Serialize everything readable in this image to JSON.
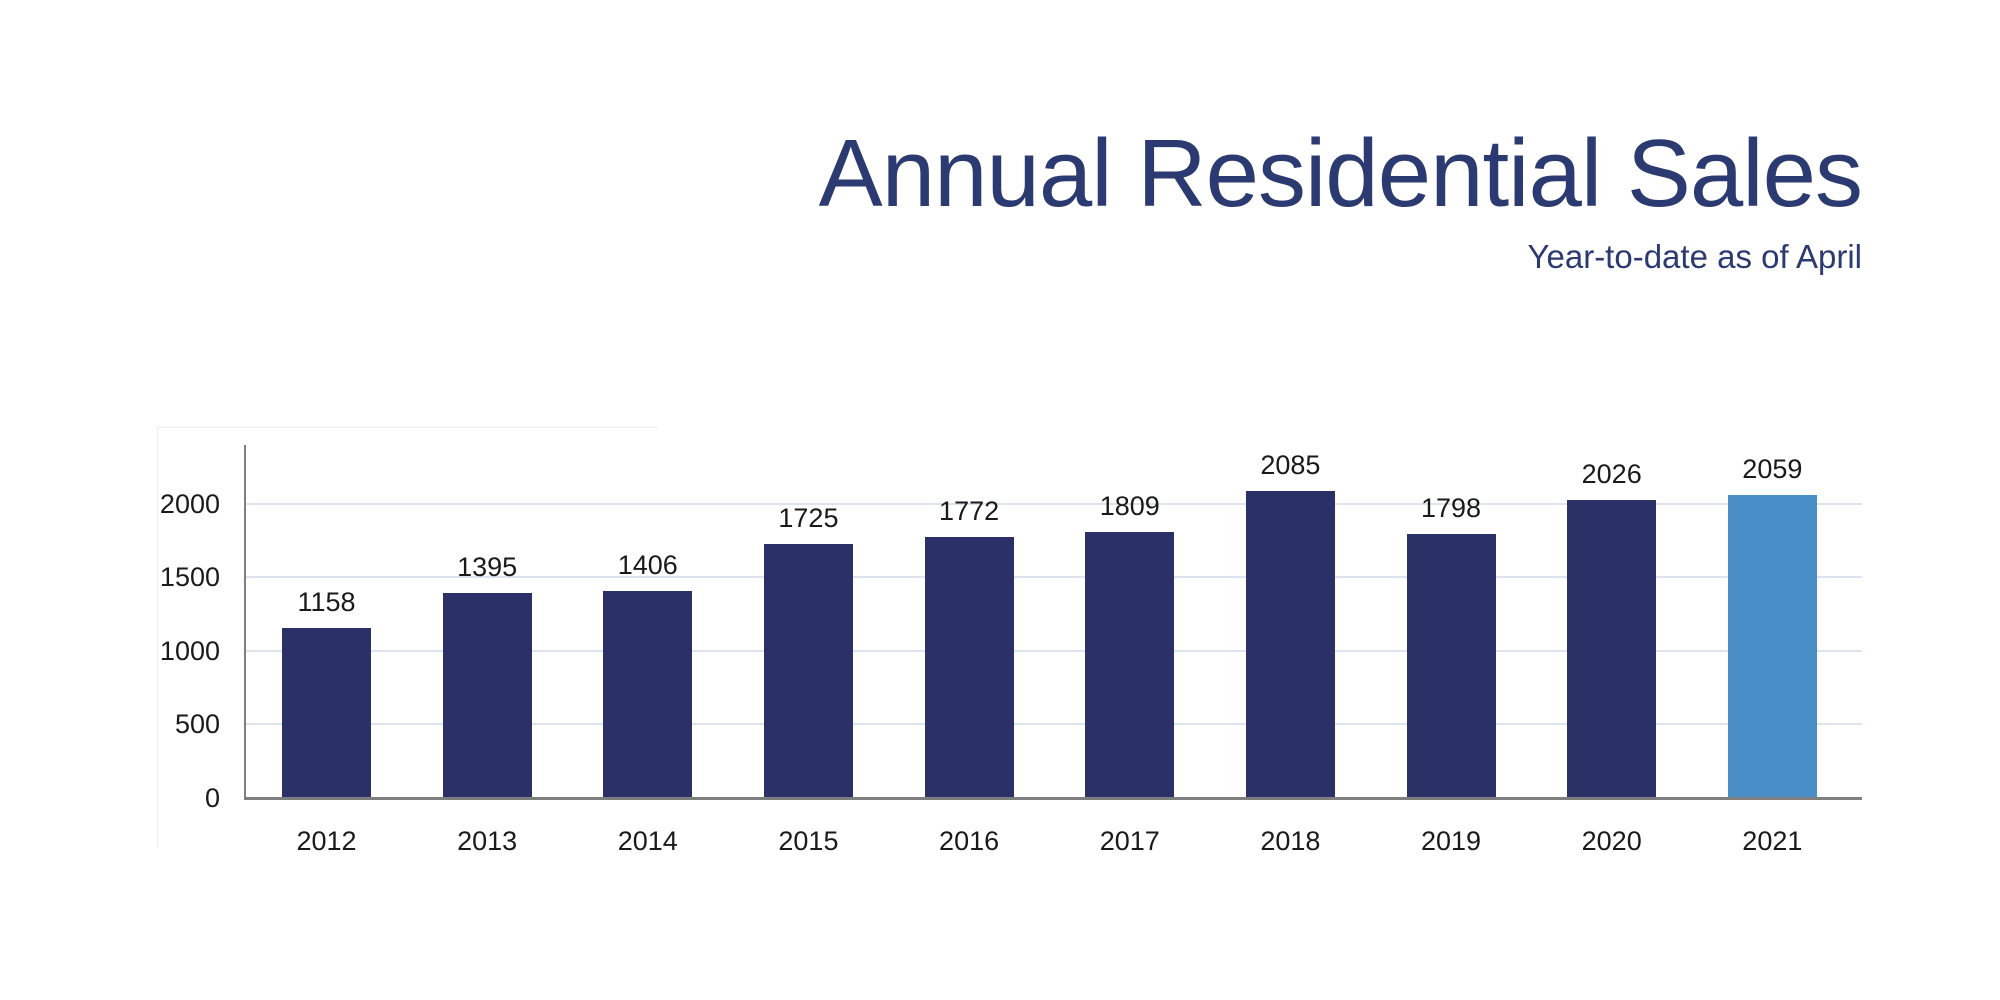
{
  "header": {
    "title": "Annual Residential Sales",
    "subtitle": "Year-to-date as of April"
  },
  "chart_data": {
    "type": "bar",
    "title": "Annual Residential Sales",
    "subtitle": "Year-to-date as of April",
    "categories": [
      "2012",
      "2013",
      "2014",
      "2015",
      "2016",
      "2017",
      "2018",
      "2019",
      "2020",
      "2021"
    ],
    "values": [
      1158,
      1395,
      1406,
      1725,
      1772,
      1809,
      2085,
      1798,
      2026,
      2059
    ],
    "data_labels": [
      1158,
      1395,
      1406,
      1725,
      1772,
      1809,
      2085,
      1798,
      2026,
      2059
    ],
    "xlabel": "",
    "ylabel": "",
    "ylim": [
      0,
      2400
    ],
    "yticks": [
      0,
      500,
      1000,
      1500,
      2000
    ],
    "grid": true,
    "legend": "none",
    "highlight_index": 9,
    "colors": {
      "bar": "#2b3166",
      "highlight_bar": "#4a8ec7",
      "title_text": "#2c3a72",
      "label_text": "#1a1a1a",
      "gridline": "#dde4f0",
      "axis": "#7f7f7f"
    }
  }
}
